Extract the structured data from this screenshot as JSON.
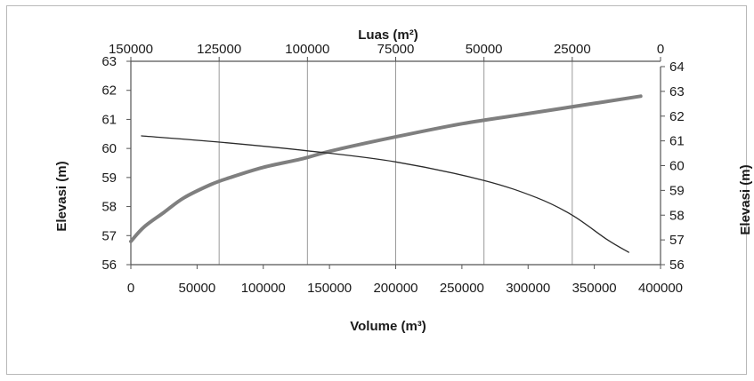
{
  "chart_data": {
    "type": "line",
    "title": "",
    "top_axis": {
      "label": "Luas (m²)",
      "range": [
        150000,
        0
      ],
      "ticks": [
        "150000",
        "125000",
        "100000",
        "75000",
        "50000",
        "25000",
        "0"
      ]
    },
    "bottom_axis": {
      "label": "Volume (m³)",
      "range": [
        0,
        400000
      ],
      "ticks": [
        "0",
        "50000",
        "100000",
        "150000",
        "200000",
        "250000",
        "300000",
        "350000",
        "400000"
      ]
    },
    "left_axis": {
      "label": "Elevasi (m)",
      "range": [
        56,
        63
      ],
      "ticks": [
        "63",
        "62",
        "61",
        "60",
        "59",
        "58",
        "57",
        "56"
      ]
    },
    "right_axis": {
      "label": "Elevasi (m)",
      "range": [
        56,
        64
      ],
      "ticks": [
        "64",
        "63",
        "62",
        "61",
        "60",
        "59",
        "58",
        "57",
        "56"
      ]
    },
    "grid": "vertical",
    "series": [
      {
        "x_axis": "bottom",
        "y_axis": "left",
        "color": "#7f7f7f",
        "points": [
          [
            0,
            56.8
          ],
          [
            10000,
            57.3
          ],
          [
            25000,
            57.8
          ],
          [
            40000,
            58.3
          ],
          [
            60000,
            58.75
          ],
          [
            75000,
            59.0
          ],
          [
            100000,
            59.35
          ],
          [
            130000,
            59.65
          ],
          [
            150000,
            59.9
          ],
          [
            200000,
            60.4
          ],
          [
            250000,
            60.85
          ],
          [
            300000,
            61.2
          ],
          [
            350000,
            61.55
          ],
          [
            385000,
            61.8
          ]
        ]
      },
      {
        "x_axis": "top",
        "y_axis": "right",
        "color": "#2a2a2a",
        "points": [
          [
            147000,
            61.2
          ],
          [
            125000,
            60.95
          ],
          [
            100000,
            60.6
          ],
          [
            75000,
            60.15
          ],
          [
            50000,
            59.4
          ],
          [
            35000,
            58.7
          ],
          [
            25000,
            58.0
          ],
          [
            15000,
            57.0
          ],
          [
            9000,
            56.5
          ]
        ]
      }
    ]
  }
}
